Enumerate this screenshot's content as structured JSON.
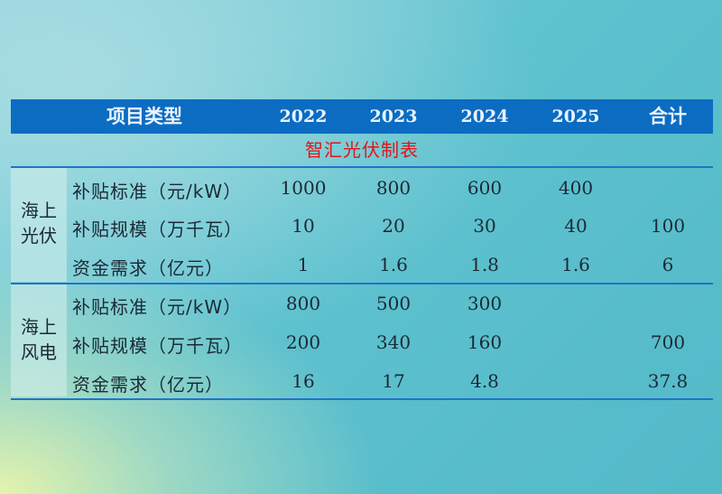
{
  "header": {
    "item_label": "项目类型",
    "years": [
      "2022",
      "2023",
      "2024",
      "2025"
    ],
    "total_label": "合计"
  },
  "title": "智汇光伏制表",
  "groups": [
    {
      "label_line1": "海上",
      "label_line2": "光伏",
      "rows": [
        {
          "label": "补贴标准（元/kW）",
          "values": [
            "1000",
            "800",
            "600",
            "400",
            ""
          ]
        },
        {
          "label": "补贴规模（万千瓦）",
          "values": [
            "10",
            "20",
            "30",
            "40",
            "100"
          ]
        },
        {
          "label": "资金需求（亿元）",
          "values": [
            "1",
            "1.6",
            "1.8",
            "1.6",
            "6"
          ]
        }
      ]
    },
    {
      "label_line1": "海上",
      "label_line2": "风电",
      "rows": [
        {
          "label": "补贴标准（元/kW）",
          "values": [
            "800",
            "500",
            "300",
            "",
            ""
          ]
        },
        {
          "label": "补贴规模（万千瓦）",
          "values": [
            "200",
            "340",
            "160",
            "",
            "700"
          ]
        },
        {
          "label": "资金需求（亿元）",
          "values": [
            "16",
            "17",
            "4.8",
            "",
            "37.8"
          ]
        }
      ]
    }
  ],
  "colors": {
    "header_bg": "#0b6cc2",
    "title_text": "#e0161b",
    "rule": "#1f74c8"
  }
}
